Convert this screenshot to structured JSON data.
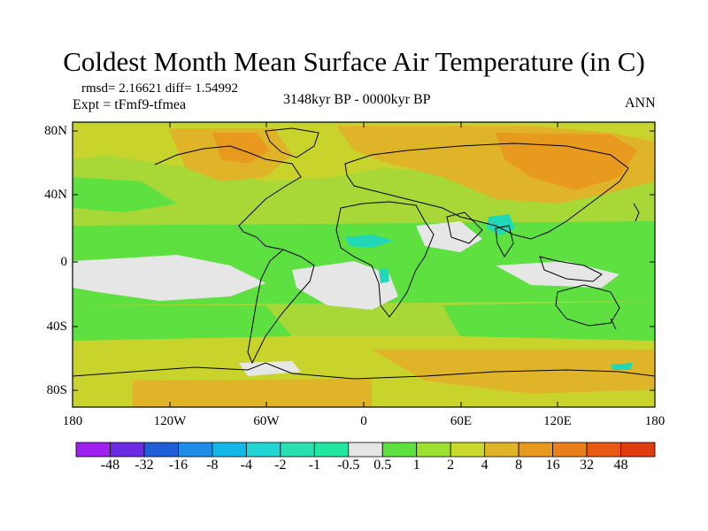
{
  "title": "Coldest Month Mean Surface Air Temperature (in C)",
  "stats_text": "rmsd= 2.16621 diff= 1.54992",
  "expt_text": "Expt = tFmf9-tfmea",
  "period_text": "3148kyr BP - 0000kyr BP",
  "season": "ANN",
  "lat_labels": [
    "80N",
    "40N",
    "0",
    "40S",
    "80S"
  ],
  "lon_labels": [
    "180",
    "120W",
    "60W",
    "0",
    "60E",
    "120E",
    "180"
  ],
  "colorbar": {
    "labels": [
      "-48",
      "-32",
      "-16",
      "-8",
      "-4",
      "-2",
      "-1",
      "-0.5",
      "0.5",
      "1",
      "2",
      "4",
      "8",
      "16",
      "32",
      "48"
    ],
    "colors": [
      "#a020f0",
      "#6a2be2",
      "#1e5fd8",
      "#1f8ce8",
      "#14b8e6",
      "#22d6d6",
      "#28e0b0",
      "#20e8a0",
      "#e6e6e6",
      "#5de040",
      "#9de030",
      "#c8d82c",
      "#e0b428",
      "#e89a1e",
      "#e8801a",
      "#e85a14",
      "#e03c10"
    ]
  },
  "map_colors": {
    "warm_light": "#a8d838",
    "warm_mid": "#c8d42c",
    "warm_high": "#e0b428",
    "warm_top": "#e89a1e",
    "near_zero": "#e6e6e6",
    "cool_small": "#20d8b8",
    "mild": "#5de040",
    "coast": "#000000"
  }
}
